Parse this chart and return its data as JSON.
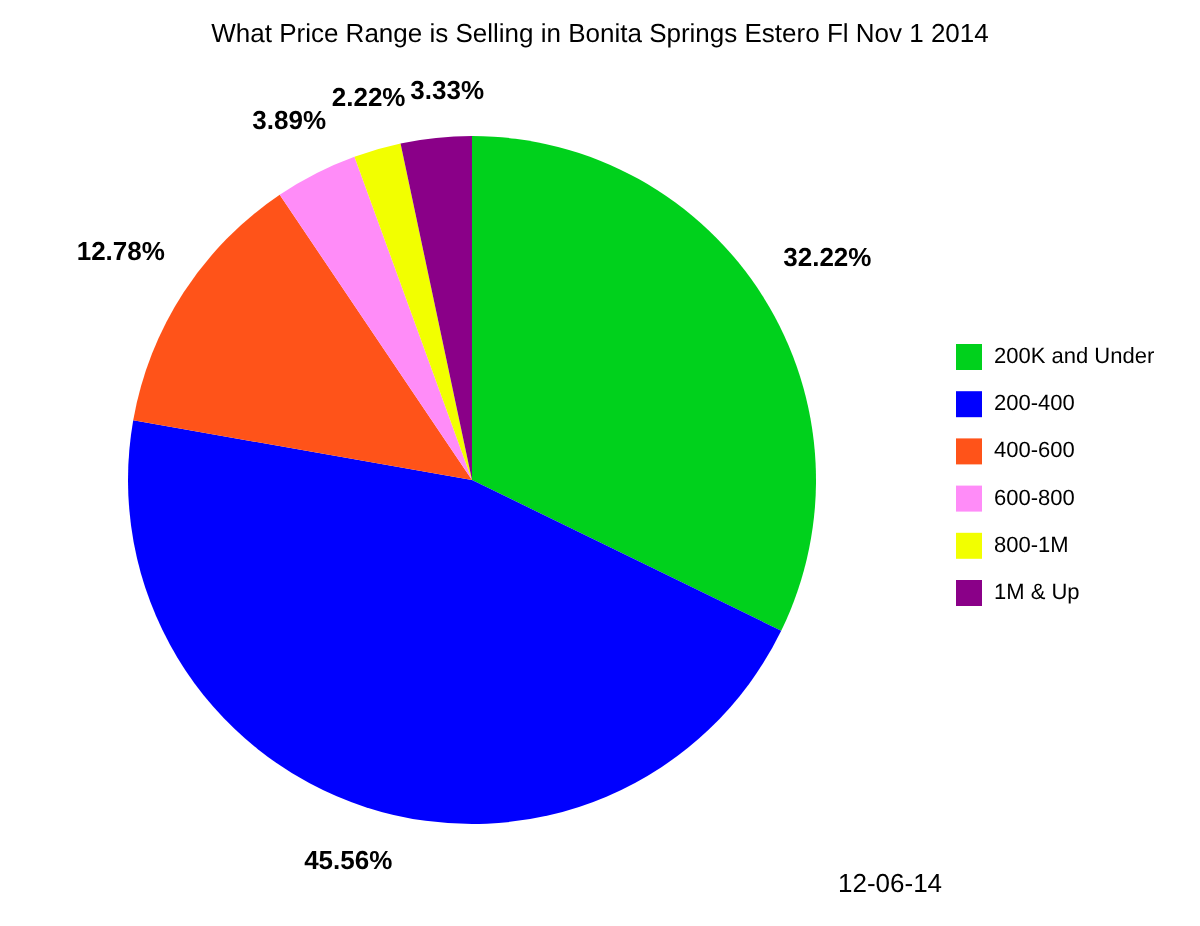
{
  "chart_data": {
    "type": "pie",
    "title": "What Price Range is Selling in Bonita Springs Estero Fl Nov 1 2014",
    "categories": [
      "200K and Under",
      "200-400",
      "400-600",
      "600-800",
      "800-1M",
      "1M & Up"
    ],
    "values": [
      32.22,
      45.56,
      12.78,
      3.89,
      2.22,
      3.33
    ],
    "colors": [
      "#00d11c",
      "#0000ff",
      "#ff5319",
      "#ff8cf8",
      "#f2ff00",
      "#8a0088"
    ],
    "value_labels": [
      "32.22%",
      "45.56%",
      "12.78%",
      "3.89%",
      "2.22%",
      "3.33%"
    ],
    "legend": "right",
    "annotations": [
      "12-06-14"
    ]
  }
}
